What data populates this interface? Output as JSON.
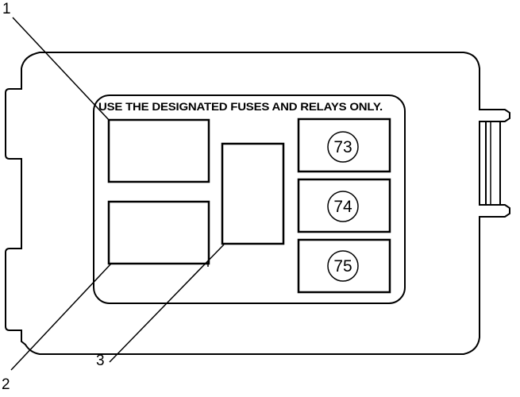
{
  "label": {
    "text": "USE THE DESIGNATED FUSES AND RELAYS ONLY."
  },
  "callouts": [
    "1",
    "2",
    "3"
  ],
  "fuses": [
    "73",
    "74",
    "75"
  ]
}
